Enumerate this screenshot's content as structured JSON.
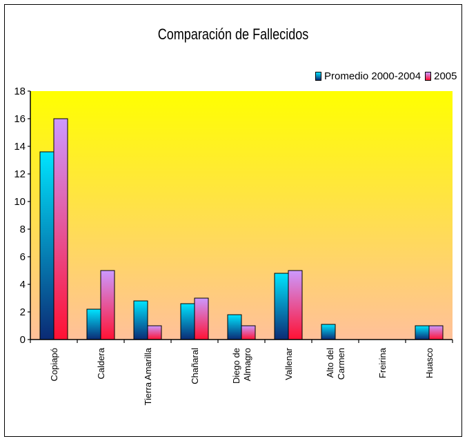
{
  "chart_data": {
    "type": "bar",
    "title": "Comparación de Fallecidos",
    "xlabel": "",
    "ylabel": "",
    "ylim": [
      0,
      18
    ],
    "yticks": [
      0,
      2,
      4,
      6,
      8,
      10,
      12,
      14,
      16,
      18
    ],
    "grid": false,
    "legend_position": "top-right",
    "categories": [
      [
        "Copiapó"
      ],
      [
        "Caldera"
      ],
      [
        "Tierra Amarilla"
      ],
      [
        "Chañaral"
      ],
      [
        "Diego de",
        "Almagro"
      ],
      [
        "Vallenar"
      ],
      [
        "Alto del",
        "Carmen"
      ],
      [
        "Freirina"
      ],
      [
        "Huasco"
      ]
    ],
    "series": [
      {
        "name": "Promedio 2000-2004",
        "values": [
          13.6,
          2.2,
          2.8,
          2.6,
          1.8,
          4.8,
          1.1,
          0,
          1.0
        ],
        "colors": [
          "#00e5ff",
          "#0b2a74"
        ]
      },
      {
        "name": "2005",
        "values": [
          16,
          5,
          1,
          3,
          1,
          5,
          0,
          0,
          1
        ],
        "colors": [
          "#cc99ff",
          "#ff1133"
        ]
      }
    ],
    "background": {
      "top": "#ffff00",
      "bottom": "#ffc09a"
    }
  }
}
